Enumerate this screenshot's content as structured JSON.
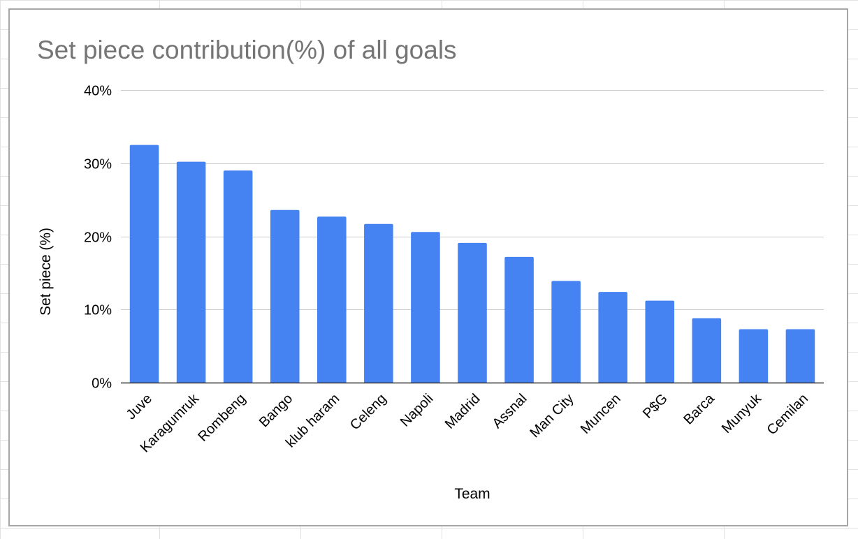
{
  "colors": {
    "bar": "#4582f2",
    "gridline": "#cccccc",
    "baseline": "#333333",
    "title": "#757575",
    "frame": "#a6a6a6",
    "sheet_grid": "#e2e2e2"
  },
  "chart_data": {
    "type": "bar",
    "title": "Set piece contribution(%) of all goals",
    "xlabel": "Team",
    "ylabel": "Set piece (%)",
    "ylim": [
      0,
      40
    ],
    "yticks": [
      0,
      10,
      20,
      30,
      40
    ],
    "ytick_labels": [
      "0%",
      "10%",
      "20%",
      "30%",
      "40%"
    ],
    "grid": true,
    "legend": "none",
    "categories": [
      "Juve",
      "Karagumruk",
      "Rombeng",
      "Bango",
      "klub haram",
      "Celeng",
      "Napoli",
      "Madrid",
      "Assnal",
      "Man City",
      "Muncen",
      "P$G",
      "Barca",
      "Munyuk",
      "Cemilan"
    ],
    "values": [
      32.5,
      30.2,
      29.0,
      23.6,
      22.7,
      21.7,
      20.6,
      19.1,
      17.2,
      13.9,
      12.4,
      11.2,
      8.8,
      7.3,
      7.3
    ]
  }
}
